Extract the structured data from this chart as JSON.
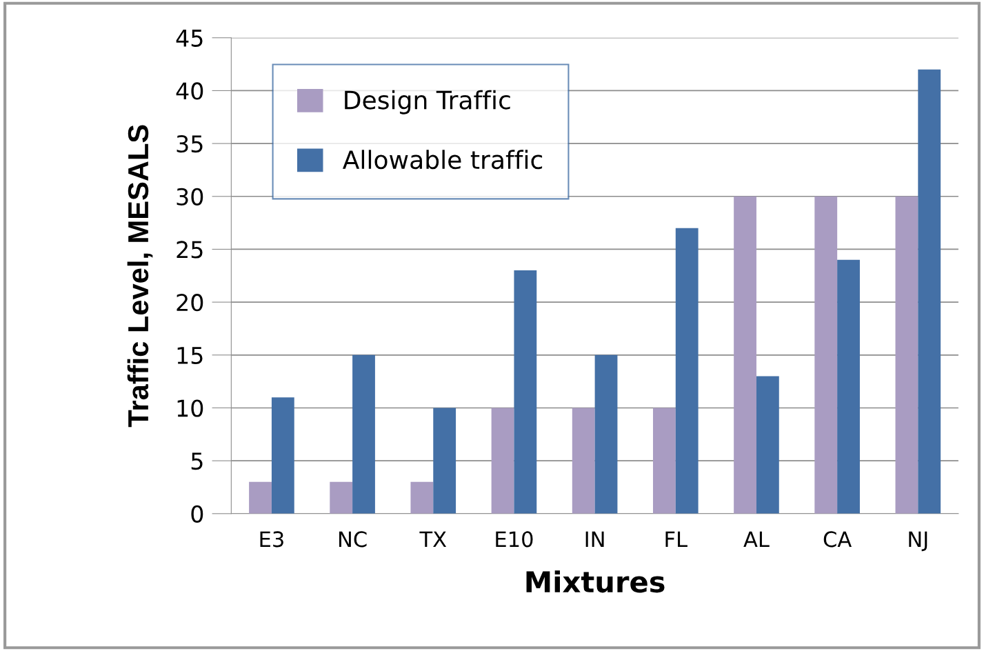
{
  "chart_data": {
    "type": "bar",
    "xlabel": "Mixtures",
    "ylabel": "Traffic Level, MESALS",
    "categories": [
      "E3",
      "NC",
      "TX",
      "E10",
      "IN",
      "FL",
      "AL",
      "CA",
      "NJ"
    ],
    "series": [
      {
        "name": "Design Traffic",
        "color": "#a99cc2",
        "values": [
          3,
          3,
          3,
          10,
          10,
          10,
          30,
          30,
          30
        ]
      },
      {
        "name": "Allowable traffic",
        "color": "#4470a6",
        "values": [
          11,
          15,
          10,
          23,
          15,
          27,
          13,
          24,
          42
        ]
      }
    ],
    "ylim": [
      0,
      45
    ],
    "yticks": [
      0,
      5,
      10,
      15,
      20,
      25,
      30,
      35,
      40,
      45
    ],
    "grid": "y",
    "legend": "top left"
  }
}
